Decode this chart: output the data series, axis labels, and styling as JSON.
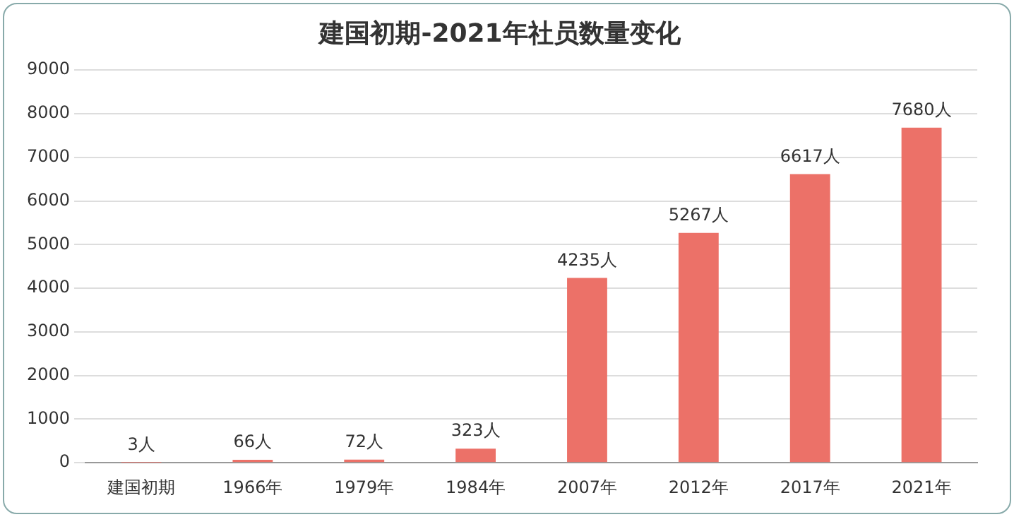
{
  "chart_data": {
    "type": "bar",
    "title": "建国初期-2021年社员数量变化",
    "categories": [
      "建国初期",
      "1966年",
      "1979年",
      "1984年",
      "2007年",
      "2012年",
      "2017年",
      "2021年"
    ],
    "values": [
      3,
      66,
      72,
      323,
      4235,
      5267,
      6617,
      7680
    ],
    "value_labels": [
      "3人",
      "66人",
      "72人",
      "323人",
      "4235人",
      "5267人",
      "6617人",
      "7680人"
    ],
    "color": "#ec7168",
    "ylim": [
      0,
      9000
    ],
    "yticks": [
      0,
      1000,
      2000,
      3000,
      4000,
      5000,
      6000,
      7000,
      8000,
      9000
    ],
    "grid": "y",
    "legend": false
  }
}
